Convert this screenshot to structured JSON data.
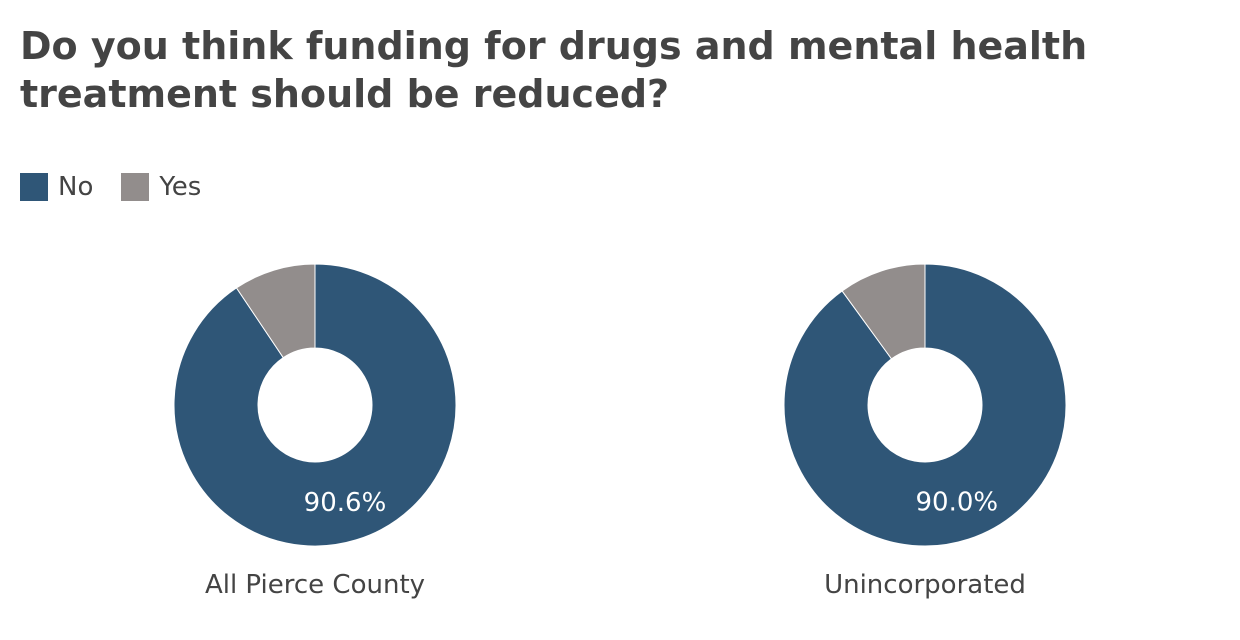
{
  "title": "Do you think funding for drugs and mental health treatment should be reduced?",
  "legend": [
    {
      "label": "No",
      "color": "#2f5677"
    },
    {
      "label": "Yes",
      "color": "#928d8c"
    }
  ],
  "chart_data": [
    {
      "type": "pie",
      "donut": true,
      "title": "All Pierce County",
      "categories": [
        "No",
        "Yes"
      ],
      "values": [
        90.6,
        9.4
      ],
      "data_labels": [
        "90.6%",
        ""
      ],
      "colors": [
        "#2f5677",
        "#928d8c"
      ]
    },
    {
      "type": "pie",
      "donut": true,
      "title": "Unincorporated",
      "categories": [
        "No",
        "Yes"
      ],
      "values": [
        90.0,
        10.0
      ],
      "data_labels": [
        "90.0%",
        ""
      ],
      "colors": [
        "#2f5677",
        "#928d8c"
      ]
    }
  ]
}
